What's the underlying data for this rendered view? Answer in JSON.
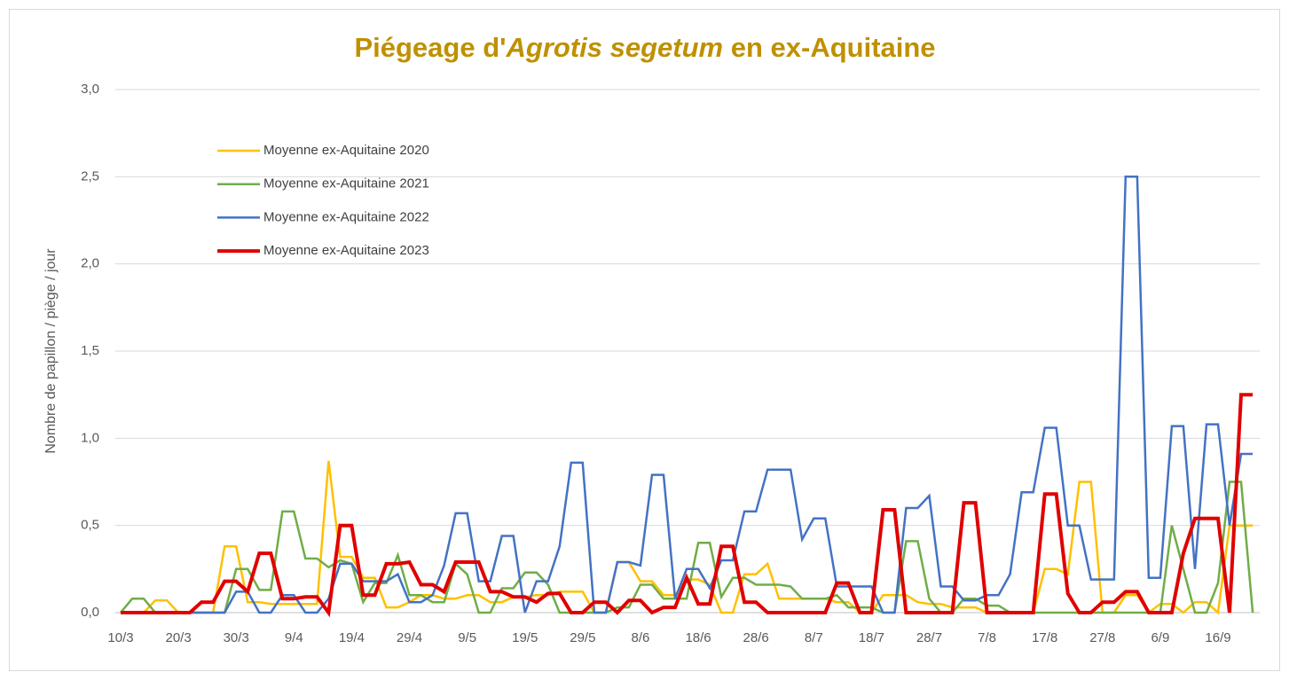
{
  "chart_data": {
    "type": "line",
    "title": [
      "Piégeage d'",
      "Agrotis segetum",
      " en ex-Aquitaine"
    ],
    "title_color": "#bf9000",
    "y_label": "Nombre de papillon  / piège / jour",
    "legend": "upper left",
    "grid": true,
    "ylim": [
      0,
      3
    ],
    "yticks": [
      {
        "value": 0,
        "label": "0,0"
      },
      {
        "value": 0.5,
        "label": "0,5"
      },
      {
        "value": 1,
        "label": "1,0"
      },
      {
        "value": 1.5,
        "label": "1,5"
      },
      {
        "value": 2,
        "label": "2,0"
      },
      {
        "value": 2.5,
        "label": "2,5"
      },
      {
        "value": 3,
        "label": "3,0"
      }
    ],
    "categories": [
      "10/3",
      null,
      null,
      null,
      null,
      "20/3",
      null,
      null,
      null,
      null,
      "30/3",
      null,
      null,
      null,
      null,
      "9/4",
      null,
      null,
      null,
      null,
      "19/4",
      null,
      null,
      null,
      null,
      "29/4",
      null,
      null,
      null,
      null,
      "9/5",
      null,
      null,
      null,
      null,
      "19/5",
      null,
      null,
      null,
      null,
      "29/5",
      null,
      null,
      null,
      null,
      "8/6",
      null,
      null,
      null,
      null,
      "18/6",
      null,
      null,
      null,
      null,
      "28/6",
      null,
      null,
      null,
      null,
      "8/7",
      null,
      null,
      null,
      null,
      "18/7",
      null,
      null,
      null,
      null,
      "28/7",
      null,
      null,
      null,
      null,
      "7/8",
      null,
      null,
      null,
      null,
      "17/8",
      null,
      null,
      null,
      null,
      "27/8",
      null,
      null,
      null,
      null,
      "6/9",
      null,
      null,
      null,
      null,
      "16/9",
      null,
      null,
      null
    ],
    "series": [
      {
        "name": "Moyenne ex-Aquitaine 2020",
        "color": "#ffc000",
        "linewidth": 2.5,
        "values": [
          0,
          0,
          0,
          0.07,
          0.07,
          0,
          0,
          0,
          0,
          0.38,
          0.38,
          0.06,
          0.06,
          0.05,
          0.05,
          0.05,
          0.05,
          0.05,
          0.87,
          0.32,
          0.32,
          0.2,
          0.2,
          0.03,
          0.03,
          0.06,
          0.1,
          0.1,
          0.08,
          0.08,
          0.1,
          0.1,
          0.06,
          0.06,
          0.09,
          0.09,
          0.1,
          0.1,
          0.12,
          0.12,
          0.12,
          0,
          0,
          0.29,
          0.29,
          0.18,
          0.18,
          0.1,
          0.1,
          0.19,
          0.19,
          0.16,
          0,
          0,
          0.22,
          0.22,
          0.28,
          0.08,
          0.08,
          0.08,
          0.08,
          0.08,
          0.06,
          0.06,
          0,
          0,
          0.1,
          0.1,
          0.1,
          0.06,
          0.05,
          0.05,
          0.03,
          0.03,
          0.03,
          0,
          0,
          0,
          0,
          0,
          0.25,
          0.25,
          0.22,
          0.75,
          0.75,
          0,
          0,
          0.1,
          0.1,
          0,
          0.05,
          0.05,
          0,
          0.06,
          0.06,
          0,
          0.5,
          0.5,
          0.5
        ]
      },
      {
        "name": "Moyenne ex-Aquitaine 2021",
        "color": "#70ad47",
        "linewidth": 2.5,
        "values": [
          0,
          0.08,
          0.08,
          0,
          0,
          0,
          0,
          0,
          0,
          0,
          0.25,
          0.25,
          0.13,
          0.13,
          0.58,
          0.58,
          0.31,
          0.31,
          0.26,
          0.3,
          0.28,
          0.06,
          0.17,
          0.17,
          0.33,
          0.1,
          0.1,
          0.06,
          0.06,
          0.28,
          0.22,
          0,
          0,
          0.14,
          0.14,
          0.23,
          0.23,
          0.16,
          0,
          0,
          0,
          0,
          0,
          0.03,
          0.03,
          0.16,
          0.16,
          0.08,
          0.08,
          0.08,
          0.4,
          0.4,
          0.09,
          0.2,
          0.2,
          0.16,
          0.16,
          0.16,
          0.15,
          0.08,
          0.08,
          0.08,
          0.1,
          0.03,
          0.03,
          0.03,
          0,
          0,
          0.41,
          0.41,
          0.08,
          0,
          0,
          0.08,
          0.08,
          0.04,
          0.04,
          0,
          0,
          0,
          0,
          0,
          0,
          0,
          0,
          0,
          0,
          0,
          0,
          0,
          0,
          0.5,
          0.25,
          0,
          0,
          0.17,
          0.75,
          0.75,
          0
        ]
      },
      {
        "name": "Moyenne ex-Aquitaine 2022",
        "color": "#4472c4",
        "linewidth": 2.5,
        "values": [
          0,
          0,
          0,
          0,
          0,
          0,
          0,
          0,
          0,
          0,
          0.12,
          0.12,
          0,
          0,
          0.1,
          0.1,
          0,
          0,
          0.08,
          0.28,
          0.28,
          0.18,
          0.18,
          0.18,
          0.22,
          0.06,
          0.06,
          0.1,
          0.27,
          0.57,
          0.57,
          0.18,
          0.18,
          0.44,
          0.44,
          0,
          0.18,
          0.18,
          0.38,
          0.86,
          0.86,
          0,
          0,
          0.29,
          0.29,
          0.27,
          0.79,
          0.79,
          0.08,
          0.25,
          0.25,
          0.14,
          0.3,
          0.3,
          0.58,
          0.58,
          0.82,
          0.82,
          0.82,
          0.42,
          0.54,
          0.54,
          0.15,
          0.15,
          0.15,
          0.15,
          0,
          0,
          0.6,
          0.6,
          0.67,
          0.15,
          0.15,
          0.07,
          0.07,
          0.1,
          0.1,
          0.22,
          0.69,
          0.69,
          1.06,
          1.06,
          0.5,
          0.5,
          0.19,
          0.19,
          0.19,
          2.5,
          2.5,
          0.2,
          0.2,
          1.07,
          1.07,
          0.25,
          1.08,
          1.08,
          0.5,
          0.91,
          0.91
        ]
      },
      {
        "name": "Moyenne ex-Aquitaine 2023",
        "color": "#e00000",
        "linewidth": 4,
        "values": [
          0,
          0,
          0,
          0,
          0,
          0,
          0,
          0.06,
          0.06,
          0.18,
          0.18,
          0.12,
          0.34,
          0.34,
          0.08,
          0.08,
          0.09,
          0.09,
          0,
          0.5,
          0.5,
          0.1,
          0.1,
          0.28,
          0.28,
          0.29,
          0.16,
          0.16,
          0.12,
          0.29,
          0.29,
          0.29,
          0.12,
          0.12,
          0.09,
          0.09,
          0.06,
          0.11,
          0.11,
          0,
          0,
          0.06,
          0.06,
          0,
          0.07,
          0.07,
          0,
          0.03,
          0.03,
          0.2,
          0.05,
          0.05,
          0.38,
          0.38,
          0.06,
          0.06,
          0,
          0,
          0,
          0,
          0,
          0,
          0.17,
          0.17,
          0,
          0,
          0.59,
          0.59,
          0,
          0,
          0,
          0,
          0,
          0.63,
          0.63,
          0,
          0,
          0,
          0,
          0,
          0.68,
          0.68,
          0.11,
          0,
          0,
          0.06,
          0.06,
          0.12,
          0.12,
          0,
          0,
          0,
          0.34,
          0.54,
          0.54,
          0.54,
          0,
          1.25,
          1.25
        ]
      }
    ]
  }
}
